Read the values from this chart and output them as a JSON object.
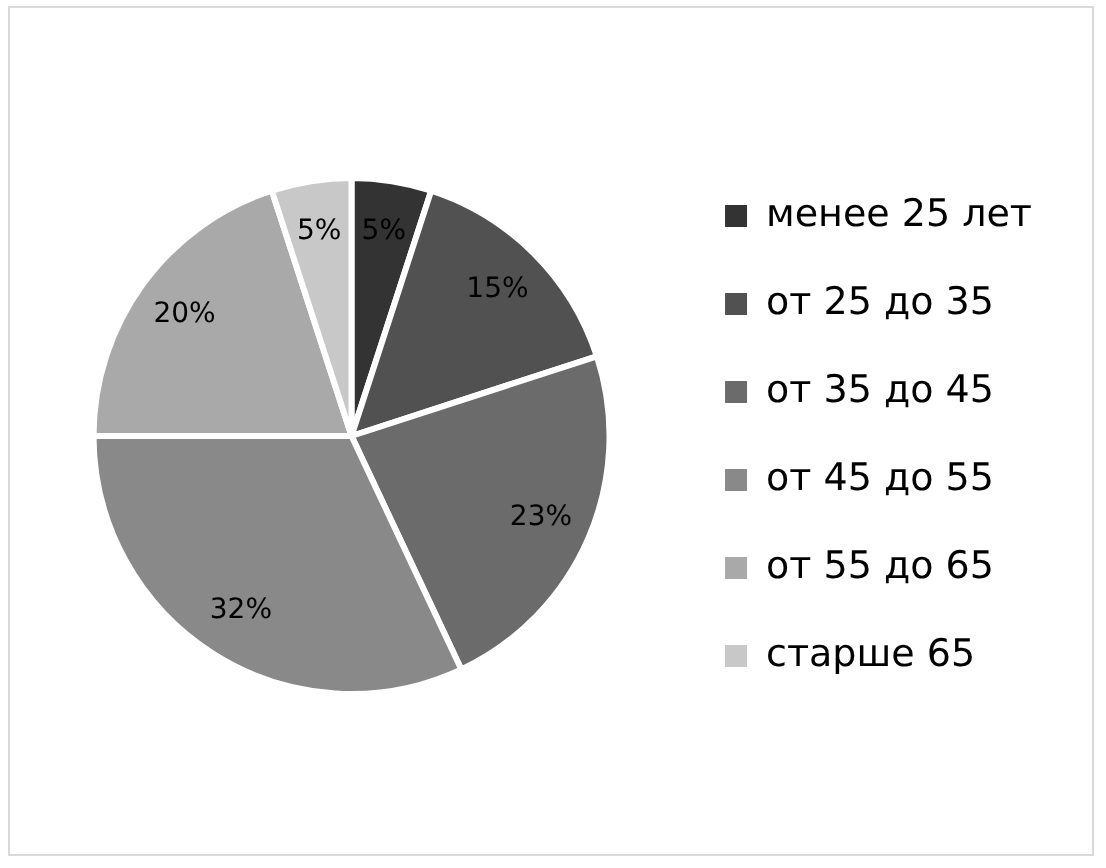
{
  "chart_data": {
    "type": "pie",
    "categories": [
      "менее 25 лет",
      "от 25 до 35",
      "от 35 до 45",
      "от 45 до 55",
      "от 55 до 65",
      "старше 65"
    ],
    "values": [
      5,
      15,
      23,
      32,
      20,
      5
    ],
    "colors": [
      "#333333",
      "#515151",
      "#6b6b6b",
      "#898989",
      "#a9a9a9",
      "#c8c8c8"
    ],
    "value_labels": [
      "5%",
      "15%",
      "23%",
      "32%",
      "20%",
      "5%"
    ],
    "legend": "right"
  }
}
